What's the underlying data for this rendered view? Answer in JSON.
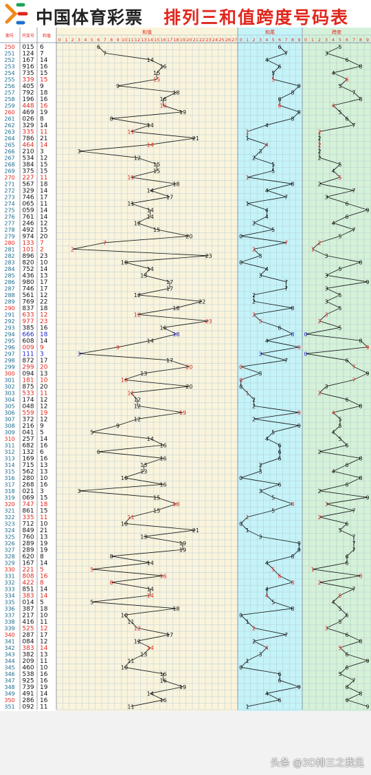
{
  "header": {
    "lottery_name": "中国体育彩票",
    "chart_title": "排列三和值跨度号码表"
  },
  "columns": {
    "issue": "期号",
    "draw": "开奖号",
    "sum_short": "和值",
    "sum": "和值",
    "tail": "和尾",
    "span": "跨度"
  },
  "watermark": "头条 @3D排三之我见",
  "colors": {
    "sum_zone": "#faf4dc",
    "tail_zone": "#c5f3f8",
    "span_zone": "#d6f1da",
    "red": "#e0271d",
    "blue": "#1a22c8",
    "line": "#111111"
  },
  "chart_data": {
    "type": "line",
    "axes": {
      "sum": [
        0,
        27
      ],
      "tail": [
        0,
        9
      ],
      "span": [
        0,
        9
      ]
    },
    "rows": [
      [
        "250",
        "015",
        6,
        "k"
      ],
      [
        "251",
        "124",
        7,
        "k"
      ],
      [
        "252",
        "167",
        14,
        "k"
      ],
      [
        "253",
        "916",
        16,
        "k"
      ],
      [
        "254",
        "735",
        15,
        "k"
      ],
      [
        "255",
        "339",
        15,
        "r"
      ],
      [
        "256",
        "405",
        9,
        "k"
      ],
      [
        "257",
        "792",
        18,
        "k"
      ],
      [
        "258",
        "196",
        16,
        "k"
      ],
      [
        "259",
        "448",
        16,
        "r"
      ],
      [
        "260",
        "469",
        19,
        "k"
      ],
      [
        "261",
        "026",
        8,
        "k"
      ],
      [
        "262",
        "329",
        14,
        "k"
      ],
      [
        "263",
        "335",
        11,
        "r"
      ],
      [
        "264",
        "786",
        21,
        "k"
      ],
      [
        "265",
        "464",
        14,
        "r"
      ],
      [
        "266",
        "210",
        3,
        "k"
      ],
      [
        "267",
        "534",
        12,
        "k"
      ],
      [
        "268",
        "384",
        15,
        "k"
      ],
      [
        "269",
        "375",
        15,
        "k"
      ],
      [
        "270",
        "227",
        11,
        "r"
      ],
      [
        "271",
        "567",
        18,
        "k"
      ],
      [
        "272",
        "329",
        14,
        "k"
      ],
      [
        "273",
        "746",
        17,
        "k"
      ],
      [
        "274",
        "065",
        11,
        "k"
      ],
      [
        "275",
        "059",
        14,
        "k"
      ],
      [
        "276",
        "761",
        14,
        "k"
      ],
      [
        "277",
        "246",
        12,
        "k"
      ],
      [
        "278",
        "492",
        15,
        "k"
      ],
      [
        "279",
        "974",
        20,
        "k"
      ],
      [
        "280",
        "133",
        7,
        "r"
      ],
      [
        "281",
        "101",
        2,
        "r"
      ],
      [
        "282",
        "896",
        23,
        "k"
      ],
      [
        "283",
        "820",
        10,
        "k"
      ],
      [
        "284",
        "752",
        14,
        "k"
      ],
      [
        "285",
        "436",
        13,
        "k"
      ],
      [
        "286",
        "980",
        17,
        "k"
      ],
      [
        "287",
        "746",
        17,
        "k"
      ],
      [
        "288",
        "561",
        12,
        "k"
      ],
      [
        "289",
        "769",
        22,
        "k"
      ],
      [
        "290",
        "837",
        18,
        "k"
      ],
      [
        "291",
        "633",
        12,
        "r"
      ],
      [
        "292",
        "977",
        23,
        "r"
      ],
      [
        "293",
        "385",
        16,
        "k"
      ],
      [
        "294",
        "666",
        18,
        "b"
      ],
      [
        "295",
        "608",
        14,
        "k"
      ],
      [
        "296",
        "009",
        9,
        "r"
      ],
      [
        "297",
        "111",
        3,
        "b"
      ],
      [
        "298",
        "872",
        17,
        "k"
      ],
      [
        "299",
        "299",
        20,
        "r"
      ],
      [
        "300",
        "094",
        13,
        "k"
      ],
      [
        "301",
        "181",
        10,
        "r"
      ],
      [
        "302",
        "875",
        20,
        "k"
      ],
      [
        "303",
        "533",
        11,
        "r"
      ],
      [
        "304",
        "174",
        12,
        "k"
      ],
      [
        "305",
        "048",
        12,
        "k"
      ],
      [
        "306",
        "559",
        19,
        "r"
      ],
      [
        "307",
        "372",
        12,
        "k"
      ],
      [
        "308",
        "216",
        9,
        "k"
      ],
      [
        "309",
        "041",
        5,
        "k"
      ],
      [
        "310",
        "257",
        14,
        "k"
      ],
      [
        "311",
        "682",
        16,
        "k"
      ],
      [
        "312",
        "132",
        6,
        "k"
      ],
      [
        "313",
        "169",
        16,
        "k"
      ],
      [
        "314",
        "715",
        13,
        "k"
      ],
      [
        "315",
        "562",
        13,
        "k"
      ],
      [
        "316",
        "280",
        10,
        "k"
      ],
      [
        "317",
        "268",
        16,
        "k"
      ],
      [
        "318",
        "021",
        3,
        "k"
      ],
      [
        "319",
        "069",
        15,
        "k"
      ],
      [
        "320",
        "747",
        18,
        "r"
      ],
      [
        "321",
        "861",
        15,
        "k"
      ],
      [
        "322",
        "335",
        11,
        "r"
      ],
      [
        "323",
        "712",
        10,
        "k"
      ],
      [
        "324",
        "849",
        21,
        "k"
      ],
      [
        "325",
        "760",
        13,
        "k"
      ],
      [
        "326",
        "289",
        19,
        "k"
      ],
      [
        "327",
        "289",
        19,
        "k"
      ],
      [
        "328",
        "620",
        8,
        "k"
      ],
      [
        "329",
        "167",
        14,
        "k"
      ],
      [
        "330",
        "221",
        5,
        "r"
      ],
      [
        "331",
        "808",
        16,
        "r"
      ],
      [
        "332",
        "422",
        8,
        "r"
      ],
      [
        "333",
        "851",
        14,
        "k"
      ],
      [
        "334",
        "383",
        14,
        "r"
      ],
      [
        "335",
        "014",
        5,
        "k"
      ],
      [
        "336",
        "387",
        18,
        "k"
      ],
      [
        "337",
        "217",
        10,
        "k"
      ],
      [
        "338",
        "416",
        11,
        "k"
      ],
      [
        "339",
        "525",
        12,
        "r"
      ],
      [
        "340",
        "287",
        17,
        "k"
      ],
      [
        "341",
        "084",
        12,
        "k"
      ],
      [
        "342",
        "383",
        14,
        "r"
      ],
      [
        "343",
        "382",
        13,
        "k"
      ],
      [
        "344",
        "209",
        11,
        "k"
      ],
      [
        "345",
        "460",
        10,
        "k"
      ],
      [
        "346",
        "538",
        16,
        "k"
      ],
      [
        "347",
        "925",
        16,
        "k"
      ],
      [
        "348",
        "739",
        19,
        "k"
      ],
      [
        "349",
        "491",
        14,
        "k"
      ],
      [
        "350",
        "286",
        16,
        "k"
      ],
      [
        "351",
        "092",
        11,
        "k"
      ]
    ]
  }
}
